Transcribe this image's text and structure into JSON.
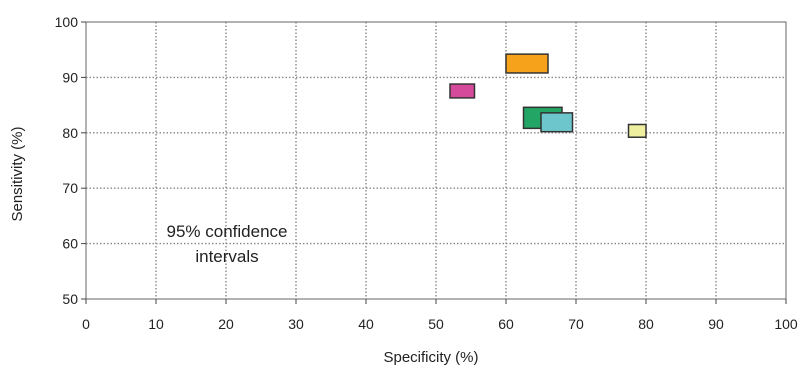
{
  "chart_data": {
    "type": "scatter",
    "xlabel": "Specificity (%)",
    "ylabel": "Sensitivity (%)",
    "xlim": [
      0,
      100
    ],
    "ylim": [
      50,
      100
    ],
    "x_ticks": [
      0,
      10,
      20,
      30,
      40,
      50,
      60,
      70,
      80,
      90,
      100
    ],
    "y_ticks": [
      50,
      60,
      70,
      80,
      90,
      100
    ],
    "grid": true,
    "annotation": {
      "line1": "95% confidence",
      "line2": "intervals"
    },
    "boxes": [
      {
        "x_low": 52,
        "x_high": 55.5,
        "y_low": 86.3,
        "y_high": 88.8,
        "color": "#d64a9c"
      },
      {
        "x_low": 60,
        "x_high": 66,
        "y_low": 90.8,
        "y_high": 94.2,
        "color": "#f7a21b"
      },
      {
        "x_low": 62.5,
        "x_high": 68,
        "y_low": 80.8,
        "y_high": 84.6,
        "color": "#23a566"
      },
      {
        "x_low": 65,
        "x_high": 69.5,
        "y_low": 80.2,
        "y_high": 83.6,
        "color": "#6cc6cc"
      },
      {
        "x_low": 77.5,
        "x_high": 80,
        "y_low": 79.2,
        "y_high": 81.5,
        "color": "#eef0a0"
      }
    ]
  }
}
